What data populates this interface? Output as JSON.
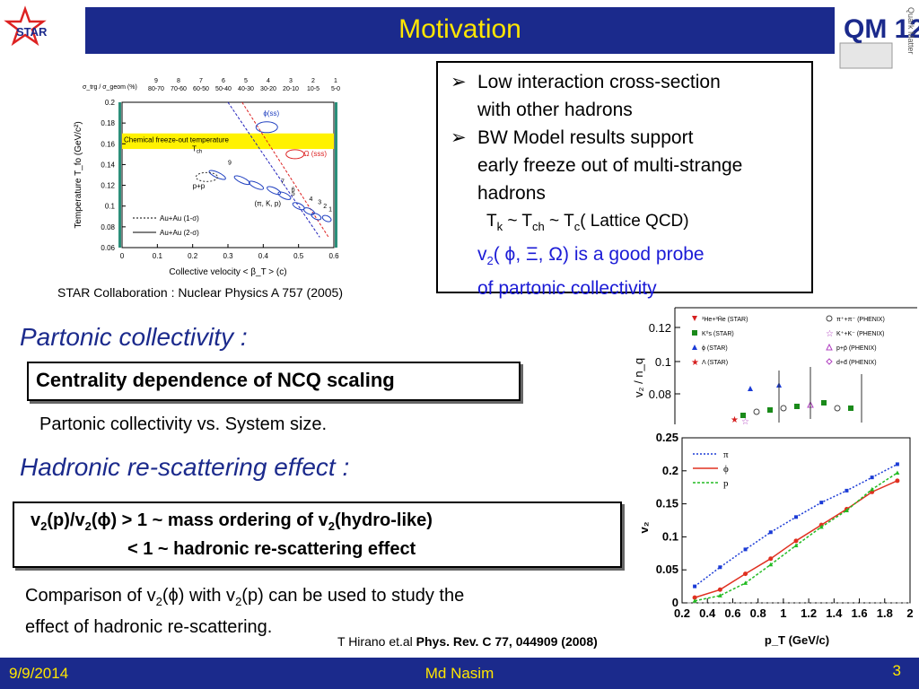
{
  "slide": {
    "title": "Motivation",
    "date": "9/9/2014",
    "author": "Md Nasim",
    "page_number": "3"
  },
  "logos": {
    "star": "STAR",
    "qm": "QM 12",
    "qm_side": "Quark Matter"
  },
  "bullets": {
    "b1_line1": "Low interaction cross-section",
    "b1_line2": "with other hadrons",
    "b2_line1": "BW Model results support",
    "b2_line2": "early freeze out of multi-strange",
    "b2_line3": "hadrons",
    "tk_T1": "T",
    "tk_sub1": "k",
    "tk_mid1": " ~ T",
    "tk_sub2": "ch",
    "tk_mid2": " ~ T",
    "tk_sub3": "c",
    "tk_tail": "( Lattice QCD)",
    "probe_v": "v",
    "probe_sub": "2",
    "probe_rest": "( ϕ, Ξ, Ω) is a good probe",
    "probe_line2": "of partonic collectivity",
    "arrow": "➢"
  },
  "citations": {
    "star_collab": "STAR Collaboration : Nuclear Physics A 757 (2005)",
    "hirano_prefix": "T Hirano et.al ",
    "hirano_ref": "Phys. Rev. C 77, 044909 (2008)"
  },
  "sections": {
    "partonic_heading": "Partonic collectivity  :",
    "ncq_box": "Centrality dependence of  NCQ scaling",
    "partonic_sub": "Partonic collectivity vs. System size.",
    "hadronic_heading": "Hadronic re-scattering effect :",
    "v2_l1_a": "v",
    "v2_l1_s1": "2",
    "v2_l1_b": "(p)/v",
    "v2_l1_s2": "2",
    "v2_l1_c": "(ϕ) > 1  ~ mass ordering of v",
    "v2_l1_s3": "2",
    "v2_l1_d": "(hydro-like)",
    "v2_l2": "< 1  ~  hadronic re-scattering effect",
    "cmp_a": "Comparison of v",
    "cmp_s1": "2",
    "cmp_b": "(ϕ) with v",
    "cmp_s2": "2",
    "cmp_c": "(p) can be used to study the",
    "cmp_line2": "effect of hadronic re-scattering."
  },
  "colors": {
    "brand_blue": "#1b2a8c",
    "title_yellow": "#ffe600",
    "probe_blue": "#1b1bd6"
  },
  "chart_data": [
    {
      "type": "scatter",
      "xlabel": "Collective velocity < β_T > (c)",
      "ylabel": "Temperature T_fo (GeV/c²)",
      "xlim": [
        0,
        0.6
      ],
      "ylim": [
        0.06,
        0.2
      ],
      "x_ticks": [
        "0",
        "0.1",
        "0.2",
        "0.3",
        "0.4",
        "0.5",
        "0.6"
      ],
      "y_ticks": [
        "0.06",
        "0.08",
        "0.1",
        "0.12",
        "0.14",
        "0.16",
        "0.18",
        "0.2"
      ],
      "top_axis_label": "σ_trg / σ_geom (%)",
      "top_numbers": [
        "9",
        "8",
        "7",
        "6",
        "5",
        "4",
        "3",
        "2",
        "1"
      ],
      "top_ranges": [
        "80-70",
        "70-60",
        "60-50",
        "50-40",
        "40-30",
        "30-20",
        "20-10",
        "10-5",
        "5-0"
      ],
      "band_label_1": "Chemical freeze-out temperature",
      "band_label_2": "T",
      "band_label_2_sub": "ch",
      "band": [
        0.155,
        0.17
      ],
      "series": [
        {
          "name": "ϕ(ss)",
          "x": [
            0.41
          ],
          "y": [
            0.176
          ]
        },
        {
          "name": "Ω (sss)",
          "x": [
            0.49
          ],
          "y": [
            0.15
          ]
        },
        {
          "name": "p+p",
          "x": [
            0.24
          ],
          "y": [
            0.128
          ]
        },
        {
          "name": "(π, K, p)",
          "x": [
            0.27,
            0.34,
            0.38,
            0.43,
            0.46,
            0.5,
            0.53,
            0.55,
            0.58
          ],
          "y": [
            0.13,
            0.125,
            0.12,
            0.115,
            0.11,
            0.1,
            0.095,
            0.09,
            0.088
          ]
        }
      ],
      "legend": [
        "Au+Au (1-σ)",
        "Au+Au (2-σ)"
      ],
      "text_labels": {
        "p_p": "p+p",
        "piKp": "(π, K, p)",
        "phi": "ϕ(ss)",
        "omega": "Ω (sss)",
        "n9": "9",
        "n7": "7",
        "n6": "6",
        "n5": "5",
        "n4": "4",
        "n3": "3",
        "n2": "2",
        "n1": "1"
      }
    },
    {
      "type": "scatter",
      "ylabel": "v₂ / n_q",
      "y_ticks": [
        "0.12",
        "0.1",
        "0.08"
      ],
      "legend": [
        {
          "name": "³He+³H̄e (STAR)",
          "color": "#d62020",
          "marker": "tri-down"
        },
        {
          "name": "K⁰s (STAR)",
          "color": "#1a8a1a",
          "marker": "square"
        },
        {
          "name": "ϕ (STAR)",
          "color": "#1b3bd6",
          "marker": "tri-up"
        },
        {
          "name": "Λ (STAR)",
          "color": "#d62020",
          "marker": "star"
        },
        {
          "name": "π⁺+π⁻ (PHENIX)",
          "color": "#444444",
          "marker": "circle-open"
        },
        {
          "name": "K⁺+K⁻ (PHENIX)",
          "color": "#b040c0",
          "marker": "star-open"
        },
        {
          "name": "p+p̄ (PHENIX)",
          "color": "#b040c0",
          "marker": "tri-open"
        },
        {
          "name": "d+d̄ (PHENIX)",
          "color": "#b040c0",
          "marker": "diamond-open"
        }
      ]
    },
    {
      "type": "line",
      "xlabel": "p_T (GeV/c)",
      "ylabel": "v₂",
      "xlim": [
        0.2,
        2
      ],
      "ylim": [
        0,
        0.25
      ],
      "x_ticks": [
        "0.2",
        "0.4",
        "0.6",
        "0.8",
        "1",
        "1.2",
        "1.4",
        "1.6",
        "1.8",
        "2"
      ],
      "y_ticks": [
        "0",
        "0.05",
        "0.1",
        "0.15",
        "0.2",
        "0.25"
      ],
      "series": [
        {
          "name": "π",
          "color": "#1b3bd6",
          "x": [
            0.3,
            0.5,
            0.7,
            0.9,
            1.1,
            1.3,
            1.5,
            1.7,
            1.9
          ],
          "y": [
            0.025,
            0.054,
            0.081,
            0.107,
            0.13,
            0.152,
            0.17,
            0.19,
            0.21
          ]
        },
        {
          "name": "ϕ",
          "color": "#e03020",
          "x": [
            0.3,
            0.5,
            0.7,
            0.9,
            1.1,
            1.3,
            1.5,
            1.7,
            1.9
          ],
          "y": [
            0.008,
            0.02,
            0.044,
            0.067,
            0.094,
            0.118,
            0.142,
            0.168,
            0.185
          ]
        },
        {
          "name": "p",
          "color": "#22bb22",
          "x": [
            0.3,
            0.5,
            0.7,
            0.9,
            1.1,
            1.3,
            1.5,
            1.7,
            1.9
          ],
          "y": [
            0.003,
            0.011,
            0.03,
            0.058,
            0.087,
            0.115,
            0.14,
            0.172,
            0.197
          ]
        }
      ]
    }
  ]
}
